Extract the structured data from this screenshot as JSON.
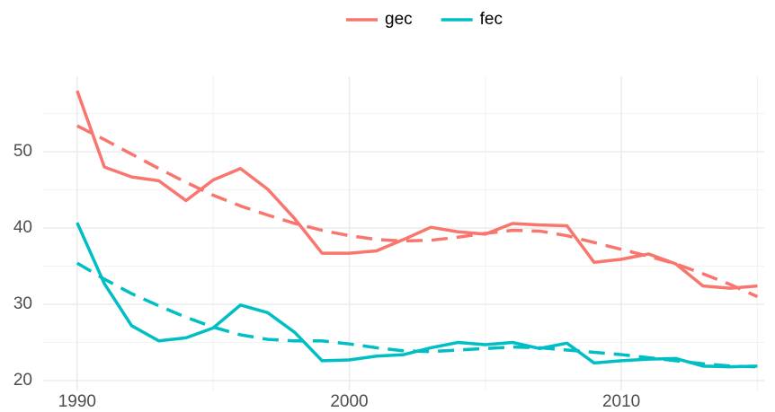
{
  "chart_data": {
    "type": "line",
    "x": [
      1990,
      1991,
      1992,
      1993,
      1994,
      1995,
      1996,
      1997,
      1998,
      1999,
      2000,
      2001,
      2002,
      2003,
      2004,
      2005,
      2006,
      2007,
      2008,
      2009,
      2010,
      2011,
      2012,
      2013,
      2014,
      2015
    ],
    "series": [
      {
        "name": "gec",
        "color": "#F8766D",
        "linetype": "solid",
        "values": [
          58,
          48,
          46.7,
          46.2,
          43.6,
          46.3,
          47.8,
          45.1,
          41.2,
          36.7,
          36.7,
          37.0,
          38.5,
          40.1,
          39.5,
          39.2,
          40.6,
          40.4,
          40.3,
          35.5,
          35.9,
          36.6,
          35.3,
          32.4,
          32.1,
          32.4
        ]
      },
      {
        "name": "fec",
        "color": "#00BFC4",
        "linetype": "solid",
        "values": [
          40.7,
          32.7,
          27.2,
          25.2,
          25.6,
          26.9,
          29.9,
          28.9,
          26.3,
          22.6,
          22.7,
          23.2,
          23.4,
          24.3,
          25.0,
          24.7,
          25.0,
          24.2,
          24.9,
          22.3,
          22.6,
          22.8,
          22.9,
          21.9,
          21.8,
          21.9
        ]
      },
      {
        "color": "#F8766D",
        "linetype": "dashed",
        "values": [
          53.4,
          51.6,
          49.7,
          47.8,
          46.0,
          44.3,
          42.9,
          41.7,
          40.6,
          39.7,
          39.0,
          38.5,
          38.3,
          38.4,
          38.8,
          39.3,
          39.7,
          39.6,
          39.0,
          38.1,
          37.2,
          36.3,
          35.3,
          34.0,
          32.6,
          31.0
        ]
      },
      {
        "color": "#00BFC4",
        "linetype": "dashed",
        "values": [
          35.4,
          33.3,
          31.4,
          29.8,
          28.3,
          27.0,
          26.0,
          25.4,
          25.2,
          25.2,
          24.8,
          24.3,
          23.9,
          23.8,
          24.0,
          24.2,
          24.4,
          24.3,
          24.0,
          23.7,
          23.4,
          23.0,
          22.6,
          22.2,
          21.9,
          21.8
        ]
      }
    ],
    "xlim": [
      1988.75,
      2015.25
    ],
    "ylim": [
      18.7,
      59.9
    ],
    "xticks": [
      1990,
      2000,
      2010
    ],
    "yticks": [
      20,
      30,
      40,
      50
    ],
    "x_minor_ticks": [
      1995,
      2005,
      2015
    ],
    "y_minor_ticks": [
      25,
      35,
      45,
      55
    ],
    "grid": true,
    "legend": "top"
  }
}
